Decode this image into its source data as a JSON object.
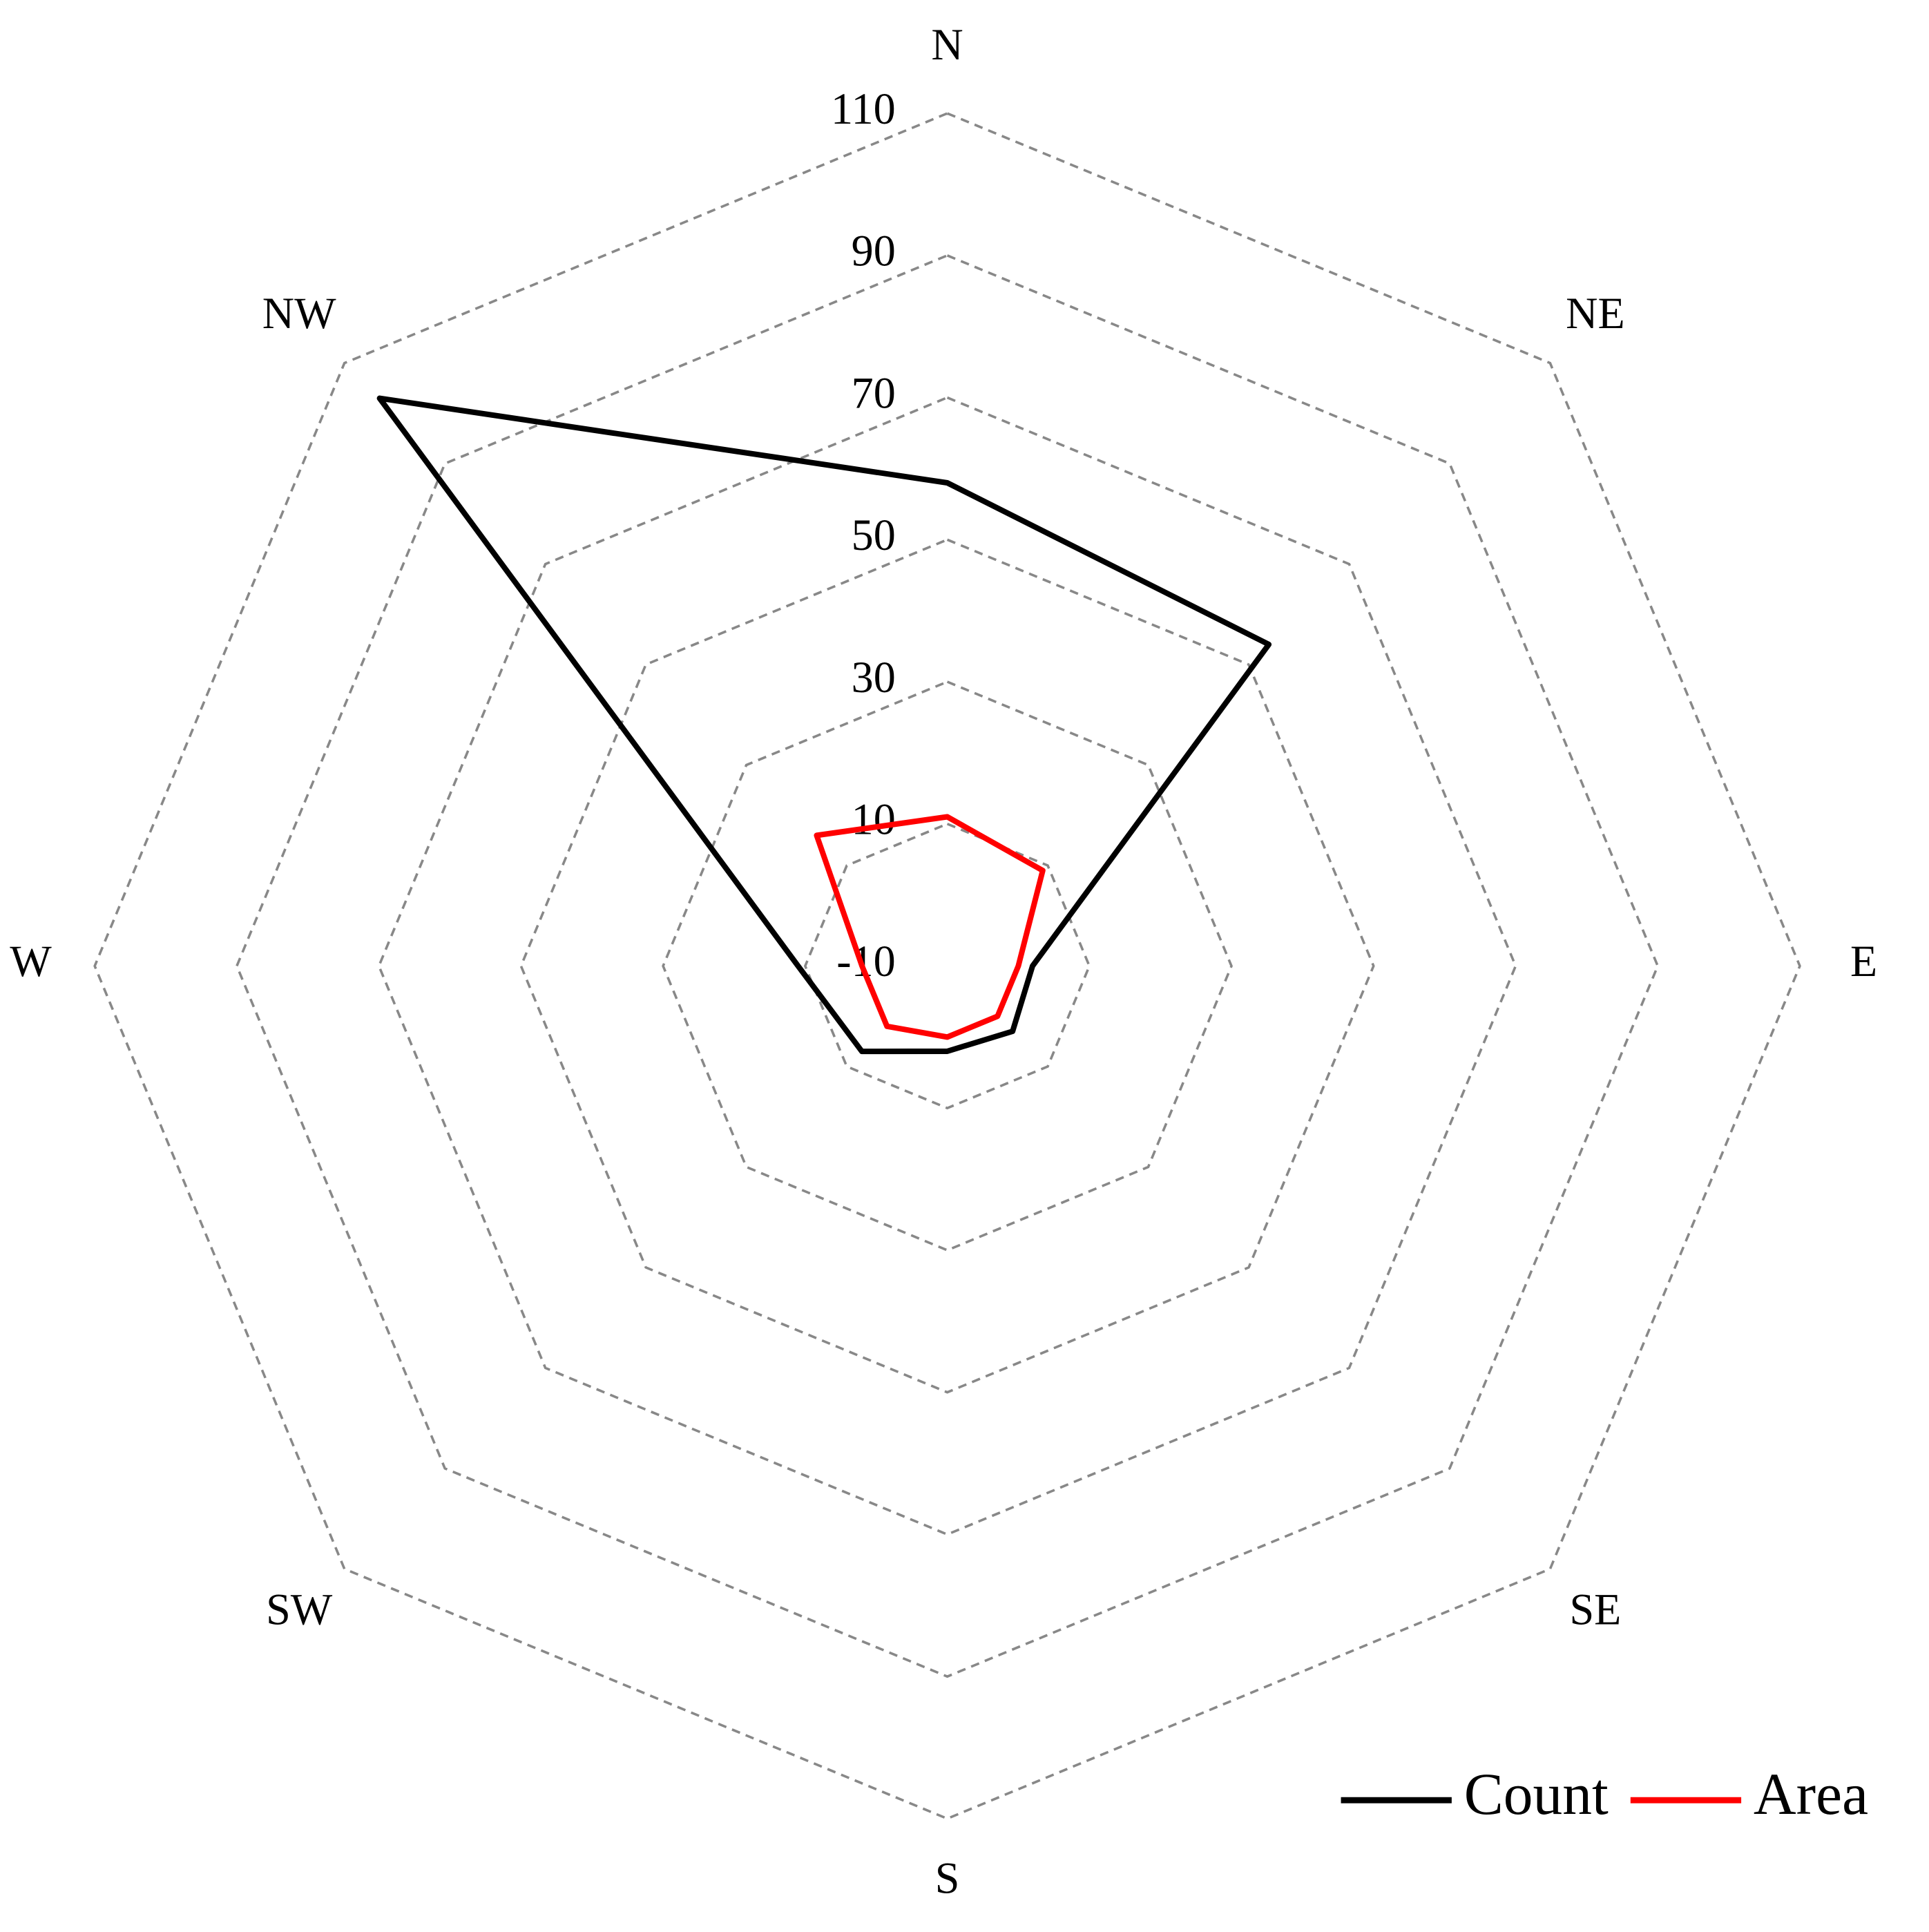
{
  "chart_data": {
    "type": "radar",
    "categories": [
      "N",
      "NE",
      "E",
      "SE",
      "S",
      "SW",
      "W",
      "NW"
    ],
    "series": [
      {
        "name": "Count",
        "color": "#000000",
        "values": [
          58,
          54,
          2,
          3,
          2,
          7,
          11,
          103
        ]
      },
      {
        "name": "Area",
        "color": "#ff0000",
        "values": [
          11,
          9,
          0,
          0,
          0,
          2,
          2,
          16
        ]
      }
    ],
    "ylim": [
      -10,
      110
    ],
    "yticks": [
      -10,
      10,
      30,
      50,
      70,
      90,
      110
    ],
    "grid": true,
    "legend": "bottom-right"
  }
}
